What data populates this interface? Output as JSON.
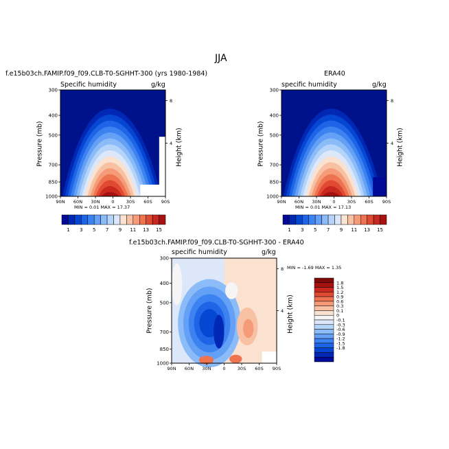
{
  "page_title": "JJA",
  "colors": {
    "seq": [
      "#000a96",
      "#0028b4",
      "#0546d2",
      "#1e64e6",
      "#3c82f0",
      "#64a0f5",
      "#8cbcf8",
      "#b4d4fa",
      "#dce8fa",
      "#fbe2d0",
      "#f9c1a4",
      "#f59b78",
      "#ee7350",
      "#e14a32",
      "#c8281e",
      "#a5120f",
      "#800a0a"
    ],
    "div": [
      "#000a96",
      "#0028b4",
      "#0546d2",
      "#1e64e6",
      "#3c82f0",
      "#64a0f5",
      "#8cbcf8",
      "#b4d4fa",
      "#dce8fa",
      "#f5f5f5",
      "#fbe2d0",
      "#f9c1a4",
      "#f59b78",
      "#ee7350",
      "#e14a32",
      "#c8281e",
      "#a5120f",
      "#800a0a"
    ],
    "field_bg": "#00118c"
  },
  "chart_data": [
    {
      "type": "heatmap",
      "id": "model",
      "title": "f.e15b03ch.FAMIP.f09_f09.CLB-T0-SGHHT-300 (yrs 1980-1984)",
      "left_label": "Specific humidity",
      "right_label": "g/kg",
      "ylabel": "Pressure (mb)",
      "y2label": "Height (km)",
      "x_ticks": [
        "90N",
        "60N",
        "30N",
        "0",
        "30S",
        "60S",
        "90S"
      ],
      "y_ticks": [
        "300",
        "400",
        "500",
        "700",
        "850",
        "1000"
      ],
      "y2_ticks": [
        "8",
        "4"
      ],
      "stats": "MIN =   0.01   MAX =  17.37",
      "colorbar_labels": [
        "1",
        "3",
        "5",
        "7",
        "9",
        "11",
        "13",
        "15"
      ]
    },
    {
      "type": "heatmap",
      "id": "obs",
      "title": "ERA40",
      "left_label": "specific humidity",
      "right_label": "g/kg",
      "ylabel": "Pressure (mb)",
      "y2label": "Height (km)",
      "x_ticks": [
        "90N",
        "60N",
        "30N",
        "0",
        "30S",
        "60S",
        "90S"
      ],
      "y_ticks": [
        "300",
        "400",
        "500",
        "700",
        "850",
        "1000"
      ],
      "y2_ticks": [
        "8",
        "4"
      ],
      "stats": "MIN =   0.01   MAX =  17.13",
      "colorbar_labels": [
        "1",
        "3",
        "5",
        "7",
        "9",
        "11",
        "13",
        "15"
      ]
    },
    {
      "type": "heatmap",
      "id": "diff",
      "title": "f.e15b03ch.FAMIP.f09_f09.CLB-T0-SGHHT-300 - ERA40",
      "left_label": "specific humidity",
      "right_label": "g/kg",
      "ylabel": "Pressure (mb)",
      "y2label": "Height (km)",
      "x_ticks": [
        "90N",
        "60N",
        "30N",
        "0",
        "30S",
        "60S",
        "90S"
      ],
      "y_ticks": [
        "300",
        "400",
        "500",
        "700",
        "850",
        "1000"
      ],
      "y2_ticks": [
        "8",
        "4"
      ],
      "stats": "MIN =  -1.69   MAX =   1.35",
      "colorbar_labels": [
        "1.8",
        "1.5",
        "1.2",
        "0.9",
        "0.6",
        "0.3",
        "0.1",
        "0",
        "-0.1",
        "-0.3",
        "-0.6",
        "-0.9",
        "-1.2",
        "-1.5",
        "-1.8"
      ]
    }
  ]
}
